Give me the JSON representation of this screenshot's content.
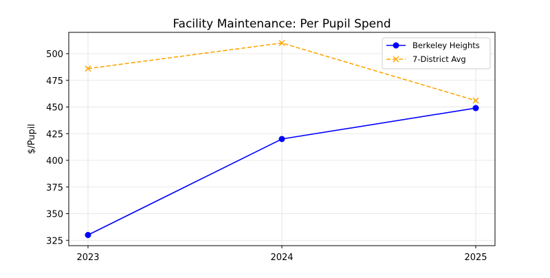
{
  "chart_data": {
    "type": "line",
    "title": "Facility Maintenance: Per Pupil Spend",
    "xlabel": "",
    "ylabel": "$/Pupil",
    "categories": [
      "2023",
      "2024",
      "2025"
    ],
    "yticks": [
      325,
      350,
      375,
      400,
      425,
      450,
      475,
      500
    ],
    "ylim": [
      320,
      520
    ],
    "grid": true,
    "legend_position": "top-right",
    "series": [
      {
        "name": "Berkeley Heights",
        "values": [
          330,
          420,
          449
        ],
        "color": "#0000ff",
        "marker": "circle",
        "linestyle": "solid"
      },
      {
        "name": "7-District Avg",
        "values": [
          486,
          510,
          456
        ],
        "color": "#ffa500",
        "marker": "x",
        "linestyle": "dashed"
      }
    ]
  }
}
